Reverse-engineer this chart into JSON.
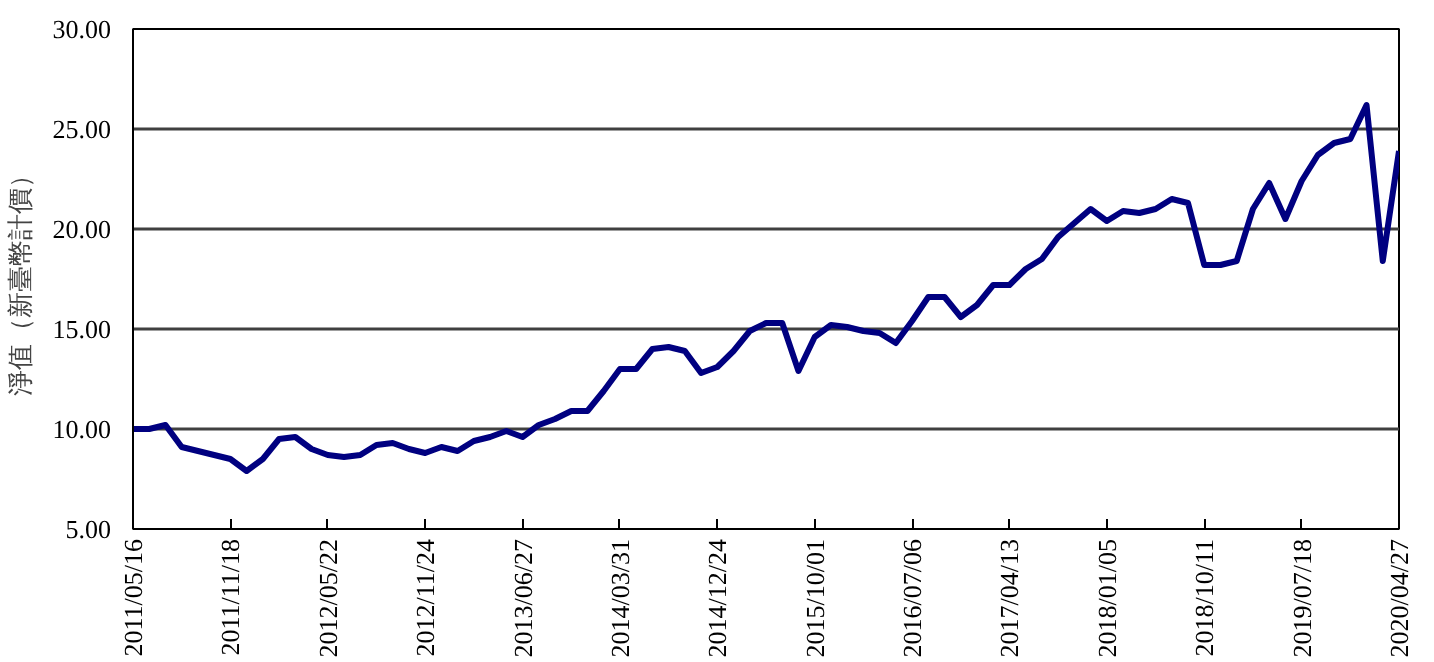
{
  "chart_data": {
    "type": "line",
    "ylabel": "淨值（新臺幣計價）",
    "categories": [
      "2011/05/16",
      null,
      null,
      null,
      null,
      null,
      "2011/11/18",
      null,
      null,
      null,
      null,
      null,
      "2012/05/22",
      null,
      null,
      null,
      null,
      null,
      "2012/11/24",
      null,
      null,
      null,
      null,
      null,
      "2013/06/27",
      null,
      null,
      null,
      null,
      null,
      "2014/03/31",
      null,
      null,
      null,
      null,
      null,
      "2014/12/24",
      null,
      null,
      null,
      null,
      null,
      "2015/10/01",
      null,
      null,
      null,
      null,
      null,
      "2016/07/06",
      null,
      null,
      null,
      null,
      null,
      "2017/04/13",
      null,
      null,
      null,
      null,
      null,
      "2018/01/05",
      null,
      null,
      null,
      null,
      null,
      "2018/10/11",
      null,
      null,
      null,
      null,
      null,
      "2019/07/18",
      null,
      null,
      null,
      null,
      null,
      "2020/04/27"
    ],
    "series": [
      {
        "color": "#000080",
        "values": [
          10.0,
          10.0,
          10.2,
          9.1,
          8.9,
          8.7,
          8.5,
          7.9,
          8.5,
          9.5,
          9.6,
          9.0,
          8.7,
          8.6,
          8.7,
          9.2,
          9.3,
          9.0,
          8.8,
          9.1,
          8.9,
          9.4,
          9.6,
          9.9,
          9.6,
          10.2,
          10.5,
          10.9,
          10.9,
          11.9,
          13.0,
          13.0,
          14.0,
          14.1,
          13.9,
          12.8,
          13.1,
          13.9,
          14.9,
          15.3,
          15.3,
          12.9,
          14.6,
          15.2,
          15.1,
          14.9,
          14.8,
          14.3,
          15.4,
          16.6,
          16.6,
          15.6,
          16.2,
          17.2,
          17.2,
          18.0,
          18.5,
          19.6,
          20.3,
          21.0,
          20.4,
          20.9,
          20.8,
          21.0,
          21.5,
          21.3,
          18.2,
          18.2,
          18.4,
          21.0,
          22.3,
          20.5,
          22.4,
          23.7,
          24.3,
          24.5,
          26.2,
          18.4,
          23.9
        ]
      }
    ],
    "ylim": [
      5,
      30
    ],
    "yticks": [
      {
        "value": 5,
        "label": "5.00"
      },
      {
        "value": 10,
        "label": "10.00"
      },
      {
        "value": 15,
        "label": "15.00"
      },
      {
        "value": 20,
        "label": "20.00"
      },
      {
        "value": 25,
        "label": "25.00"
      },
      {
        "value": 30,
        "label": "30.00"
      }
    ],
    "grid": "y",
    "marker": "none",
    "line_style": "solid"
  }
}
